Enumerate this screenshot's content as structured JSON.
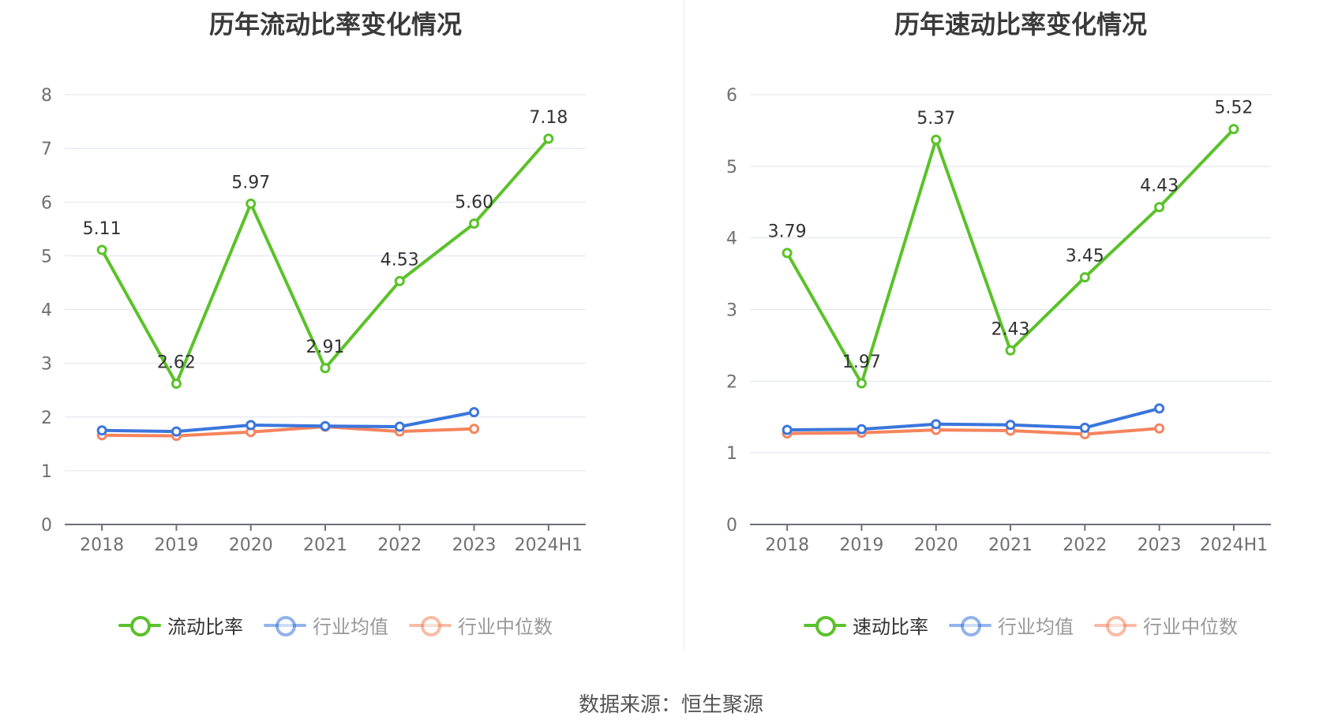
{
  "source": "数据来源：恒生聚源",
  "chart_data": [
    {
      "type": "line",
      "title": "历年流动比率变化情况",
      "categories": [
        "2018",
        "2019",
        "2020",
        "2021",
        "2022",
        "2023",
        "2024H1"
      ],
      "ylim": [
        0,
        8
      ],
      "yticks": [
        "0",
        "1",
        "2",
        "3",
        "4",
        "5",
        "6",
        "7",
        "8"
      ],
      "grid": true,
      "legend_position": "bottom",
      "series": [
        {
          "name": "流动比率",
          "color": "#5ac229",
          "values": [
            5.11,
            2.62,
            5.97,
            2.91,
            4.53,
            5.6,
            7.18
          ],
          "labels": [
            "5.11",
            "2.62",
            "5.97",
            "2.91",
            "4.53",
            "5.60",
            "7.18"
          ]
        },
        {
          "name": "行业均值",
          "color": "#3a76dc",
          "values": [
            1.75,
            1.73,
            1.85,
            1.83,
            1.82,
            2.09,
            null
          ]
        },
        {
          "name": "行业中位数",
          "color": "#f5845d",
          "values": [
            1.66,
            1.65,
            1.72,
            1.82,
            1.73,
            1.78,
            null
          ]
        }
      ]
    },
    {
      "type": "line",
      "title": "历年速动比率变化情况",
      "categories": [
        "2018",
        "2019",
        "2020",
        "2021",
        "2022",
        "2023",
        "2024H1"
      ],
      "ylim": [
        0,
        6
      ],
      "yticks": [
        "0",
        "1",
        "2",
        "3",
        "4",
        "5",
        "6"
      ],
      "grid": true,
      "legend_position": "bottom",
      "series": [
        {
          "name": "速动比率",
          "color": "#5ac229",
          "values": [
            3.79,
            1.97,
            5.37,
            2.43,
            3.45,
            4.43,
            5.52
          ],
          "labels": [
            "3.79",
            "1.97",
            "5.37",
            "2.43",
            "3.45",
            "4.43",
            "5.52"
          ]
        },
        {
          "name": "行业均值",
          "color": "#3a76dc",
          "values": [
            1.32,
            1.33,
            1.4,
            1.39,
            1.35,
            1.62,
            null
          ]
        },
        {
          "name": "行业中位数",
          "color": "#f5845d",
          "values": [
            1.27,
            1.28,
            1.32,
            1.31,
            1.26,
            1.34,
            null
          ]
        }
      ]
    }
  ]
}
